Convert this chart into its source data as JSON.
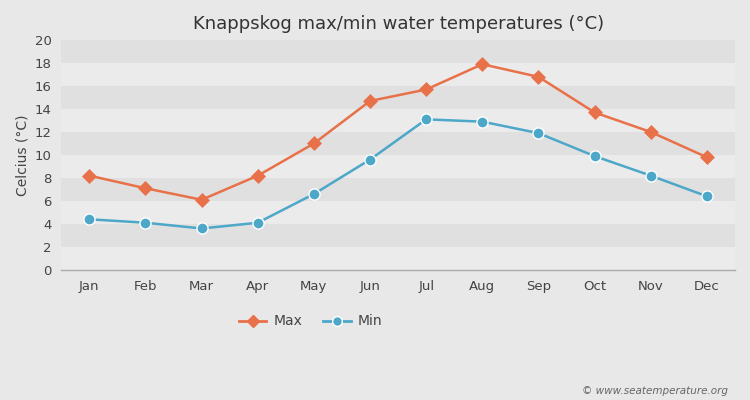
{
  "title": "Knappskog max/min water temperatures (°C)",
  "ylabel": "Celcius (°C)",
  "months": [
    "Jan",
    "Feb",
    "Mar",
    "Apr",
    "May",
    "Jun",
    "Jul",
    "Aug",
    "Sep",
    "Oct",
    "Nov",
    "Dec"
  ],
  "max_temps": [
    8.2,
    7.1,
    6.1,
    8.2,
    11.0,
    14.7,
    15.7,
    17.9,
    16.8,
    13.7,
    12.0,
    9.8
  ],
  "min_temps": [
    4.4,
    4.1,
    3.6,
    4.1,
    6.6,
    9.6,
    13.1,
    12.9,
    11.9,
    9.9,
    8.2,
    6.4
  ],
  "max_color": "#e8714a",
  "min_color": "#4ca7c8",
  "background_color": "#e8e8e8",
  "plot_bg_light": "#ebebeb",
  "plot_bg_dark": "#e0e0e0",
  "ylim": [
    0,
    20
  ],
  "yticks": [
    0,
    2,
    4,
    6,
    8,
    10,
    12,
    14,
    16,
    18,
    20
  ],
  "legend_labels": [
    "Max",
    "Min"
  ],
  "watermark": "© www.seatemperature.org",
  "title_fontsize": 13,
  "axis_label_fontsize": 10,
  "tick_fontsize": 9.5,
  "legend_fontsize": 10
}
